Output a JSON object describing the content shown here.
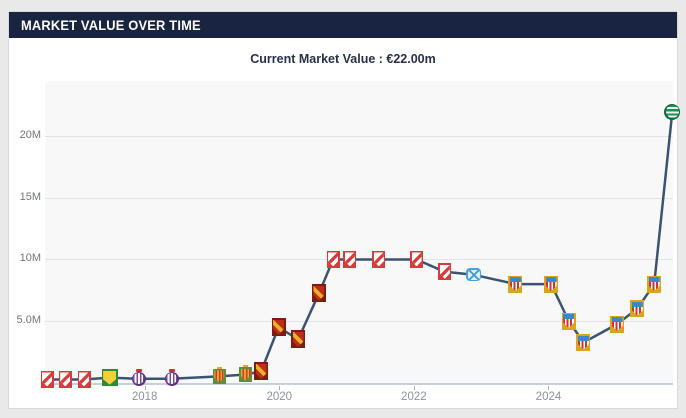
{
  "header": {
    "title": "MARKET VALUE OVER TIME"
  },
  "subtitle": {
    "text": "Current Market Value : €22.00m"
  },
  "colors": {
    "header_bg": "#192441",
    "line": "#3a5373",
    "plot_bg": "#f8f8f9",
    "grid": "#e3e3e6",
    "axis": "#c7d0d9",
    "page_bg": "#e9e9e9"
  },
  "crests": {
    "red-white-shield": {
      "label": "white shield with red trim",
      "fill": "#ffffff",
      "accent": "#d93b3b"
    },
    "yellow-green-shield": {
      "label": "yellow shield with green border",
      "fill": "#f2d03c",
      "accent": "#2e8b3a"
    },
    "purple-white-circle": {
      "label": "purple and white striped circle badge",
      "fill": "#ffffff",
      "accent": "#6a3d8f"
    },
    "gold-red-striped-shield": {
      "label": "gold and red striped shield with crown",
      "fill": "#e3a82c",
      "accent": "#5e8f3e"
    },
    "red-gold-lion-shield": {
      "label": "red shield with gold lion",
      "fill": "#bf2c1a",
      "accent": "#e8b127"
    },
    "light-blue-om-badge": {
      "label": "light blue badge",
      "fill": "#ddeffa",
      "accent": "#47a3dc"
    },
    "blue-red-striped-shield": {
      "label": "gold-bordered shield, blue chief over red and white stripes",
      "fill": "#ffffff",
      "accent": "#d9a41e"
    },
    "green-white-hoops-circle": {
      "label": "green and white hooped circle badge",
      "fill": "#19934f",
      "accent": "#0e6b3c"
    }
  },
  "chart_data": {
    "type": "line",
    "title": "Market value over time",
    "xlabel": "",
    "ylabel": "",
    "legend": "none",
    "grid": "horizontal",
    "line_color": "#3a5373",
    "xlim": [
      2016.52,
      2025.85
    ],
    "ylim_m": [
      -0.2,
      24.5
    ],
    "x_ticks": [
      {
        "x": 2018,
        "label": "2018"
      },
      {
        "x": 2020,
        "label": "2020"
      },
      {
        "x": 2022,
        "label": "2022"
      },
      {
        "x": 2024,
        "label": "2024"
      }
    ],
    "y_ticks": [
      {
        "v": 5,
        "label": "5.0M"
      },
      {
        "v": 10,
        "label": "10M"
      },
      {
        "v": 15,
        "label": "15M"
      },
      {
        "v": 20,
        "label": "20M"
      }
    ],
    "points": [
      {
        "date": 2016.55,
        "value_m": 0.25,
        "crest": "red-white-shield"
      },
      {
        "date": 2016.82,
        "value_m": 0.25,
        "crest": "red-white-shield"
      },
      {
        "date": 2017.1,
        "value_m": 0.25,
        "crest": "red-white-shield"
      },
      {
        "date": 2017.48,
        "value_m": 0.4,
        "crest": "yellow-green-shield"
      },
      {
        "date": 2017.91,
        "value_m": 0.3,
        "crest": "purple-white-circle"
      },
      {
        "date": 2018.4,
        "value_m": 0.3,
        "crest": "purple-white-circle"
      },
      {
        "date": 2019.11,
        "value_m": 0.5,
        "crest": "gold-red-striped-shield"
      },
      {
        "date": 2019.5,
        "value_m": 0.65,
        "crest": "gold-red-striped-shield"
      },
      {
        "date": 2019.73,
        "value_m": 0.9,
        "crest": "red-gold-lion-shield"
      },
      {
        "date": 2019.99,
        "value_m": 4.5,
        "crest": "red-gold-lion-shield"
      },
      {
        "date": 2020.28,
        "value_m": 3.5,
        "crest": "red-gold-lion-shield"
      },
      {
        "date": 2020.59,
        "value_m": 7.25,
        "crest": "red-gold-lion-shield"
      },
      {
        "date": 2020.8,
        "value_m": 10,
        "crest": "red-white-shield"
      },
      {
        "date": 2021.05,
        "value_m": 10,
        "crest": "red-white-shield"
      },
      {
        "date": 2021.48,
        "value_m": 10,
        "crest": "red-white-shield"
      },
      {
        "date": 2022.04,
        "value_m": 10,
        "crest": "red-white-shield"
      },
      {
        "date": 2022.46,
        "value_m": 9,
        "crest": "red-white-shield"
      },
      {
        "date": 2022.89,
        "value_m": 8.75,
        "crest": "light-blue-om-badge"
      },
      {
        "date": 2023.51,
        "value_m": 8,
        "crest": "blue-red-striped-shield"
      },
      {
        "date": 2024.04,
        "value_m": 8,
        "crest": "blue-red-striped-shield"
      },
      {
        "date": 2024.3,
        "value_m": 5,
        "crest": "blue-red-striped-shield"
      },
      {
        "date": 2024.52,
        "value_m": 3.25,
        "crest": "blue-red-striped-shield"
      },
      {
        "date": 2025.02,
        "value_m": 4.75,
        "crest": "blue-red-striped-shield"
      },
      {
        "date": 2025.32,
        "value_m": 6,
        "crest": "blue-red-striped-shield"
      },
      {
        "date": 2025.57,
        "value_m": 8,
        "crest": "blue-red-striped-shield"
      },
      {
        "date": 2025.84,
        "value_m": 22,
        "crest": "green-white-hoops-circle"
      }
    ]
  }
}
